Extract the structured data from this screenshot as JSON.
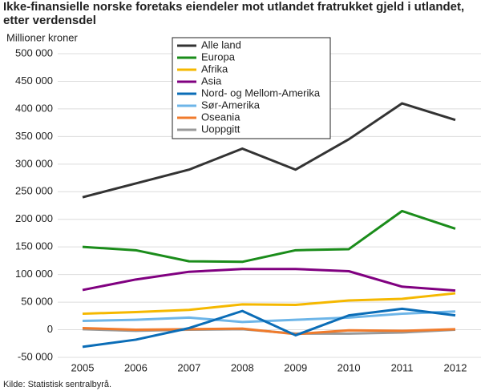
{
  "chart_data": {
    "type": "line",
    "title": "Ikke-finansielle norske foretaks eiendeler mot utlandet fratrukket gjeld i utlandet, etter verdensdel",
    "y_label": "Millioner kroner",
    "source": "Kilde: Statistisk sentralbyrå.",
    "categories": [
      "2005",
      "2006",
      "2007",
      "2008",
      "2009",
      "2010",
      "2011",
      "2012"
    ],
    "ylim": [
      -50000,
      500000
    ],
    "yticks": [
      {
        "value": -50000,
        "label": "-50 000"
      },
      0,
      {
        "value": 50000,
        "label": "50 000"
      },
      {
        "value": 100000,
        "label": "100 000"
      },
      {
        "value": 150000,
        "label": "150 000"
      },
      {
        "value": 200000,
        "label": "200 000"
      },
      {
        "value": 250000,
        "label": "250 000"
      },
      {
        "value": 300000,
        "label": "300 000"
      },
      {
        "value": 350000,
        "label": "350 000"
      },
      {
        "value": 400000,
        "label": "400 000"
      },
      {
        "value": 450000,
        "label": "450 000"
      },
      {
        "value": 500000,
        "label": "500 000"
      }
    ],
    "grid": true,
    "legend": "top",
    "series": [
      {
        "name": "Alle land",
        "color": "#333333",
        "values": [
          240000,
          265000,
          290000,
          328000,
          290000,
          345000,
          410000,
          380000
        ]
      },
      {
        "name": "Europa",
        "color": "#1a8c1a",
        "values": [
          150000,
          144000,
          124000,
          123000,
          144000,
          146000,
          215000,
          183000
        ]
      },
      {
        "name": "Afrika",
        "color": "#f5b800",
        "values": [
          29000,
          32000,
          36000,
          46000,
          45000,
          53000,
          56000,
          66000
        ]
      },
      {
        "name": "Asia",
        "color": "#800080",
        "values": [
          72000,
          91000,
          105000,
          110000,
          110000,
          106000,
          78000,
          71000
        ]
      },
      {
        "name": "Nord- og Mellom-Amerika",
        "color": "#0b6db7",
        "values": [
          -31000,
          -18000,
          3000,
          34000,
          -10000,
          26000,
          38000,
          26000
        ]
      },
      {
        "name": "Sør-Amerika",
        "color": "#6db5e8",
        "values": [
          16000,
          18000,
          22000,
          14000,
          18000,
          22000,
          29000,
          33000
        ]
      },
      {
        "name": "Oseania",
        "color": "#f07b2c",
        "values": [
          3000,
          0,
          1000,
          2000,
          -8000,
          -1000,
          -2000,
          1000
        ]
      },
      {
        "name": "Uoppgitt",
        "color": "#999999",
        "values": [
          1000,
          -2000,
          0,
          1000,
          -7000,
          -7000,
          -5000,
          0
        ]
      }
    ]
  }
}
